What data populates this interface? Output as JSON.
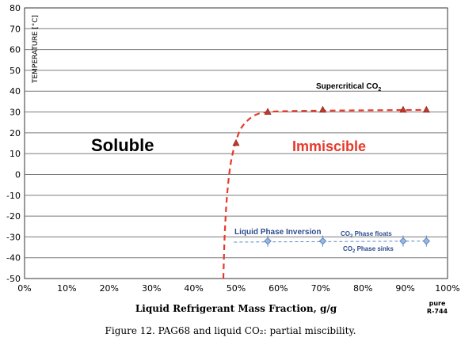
{
  "figure": {
    "caption": "Figure 12. PAG68 and liquid CO₂: partial miscibility."
  },
  "chart_data": {
    "type": "scatter",
    "ylabel": "TEMPERATURE [°C]",
    "xlabel": "Liquid Refrigerant Mass Fraction,  g/g",
    "xlim": [
      0,
      100
    ],
    "ylim": [
      -50,
      80
    ],
    "x_ticks": [
      "0%",
      "10%",
      "20%",
      "30%",
      "40%",
      "50%",
      "60%",
      "70%",
      "80%",
      "90%",
      "100%"
    ],
    "y_ticks": [
      "80",
      "70",
      "60",
      "50",
      "40",
      "30",
      "20",
      "10",
      "0",
      "-10",
      "-20",
      "-30",
      "-40",
      "-50"
    ],
    "x_end_label": [
      "pure",
      "R-744"
    ],
    "grid": "horizontal gridlines every 10 °C",
    "series": [
      {
        "marker": "triangle",
        "color": "#c0392b",
        "x": [
          50,
          57.5,
          70.5,
          89.5,
          95
        ],
        "y": [
          15,
          30,
          31,
          31,
          31
        ]
      },
      {
        "marker": "diamond",
        "color": "#5b86c5",
        "x": [
          57.5,
          70.5,
          89.5,
          95
        ],
        "y": [
          -32,
          -32,
          -32,
          -32
        ]
      }
    ],
    "boundary_curve": {
      "style": "dashed",
      "color": "#e8382a",
      "x": [
        47,
        47.3,
        47.8,
        48.5,
        49.2,
        50,
        51,
        52.5,
        54.5,
        57.5,
        65,
        80,
        95
      ],
      "y": [
        -50,
        -30,
        -12,
        2,
        10,
        16,
        21.5,
        25.5,
        28.5,
        30,
        30.5,
        30.8,
        31
      ]
    },
    "inversion_line": {
      "style": "dashed",
      "color": "#5b86c5",
      "x": [
        49.5,
        95
      ],
      "y": [
        -32.5,
        -32
      ]
    },
    "annotations": {
      "soluble": "Soluble",
      "immiscible": "Immiscible",
      "supercritical": "Supercritical CO",
      "supercritical_sub": "2",
      "inversion": "Liquid Phase Inversion",
      "floats_pre": "CO",
      "floats_sub": "2",
      "floats_post": " Phase floats",
      "sinks_pre": "CO",
      "sinks_sub": "2",
      "sinks_post": " Phase sinks"
    },
    "colors": {
      "soluble": "#000000",
      "immiscible": "#e8382a",
      "inversion": "#2e4d8f",
      "grid": "#7a7a7a"
    }
  }
}
